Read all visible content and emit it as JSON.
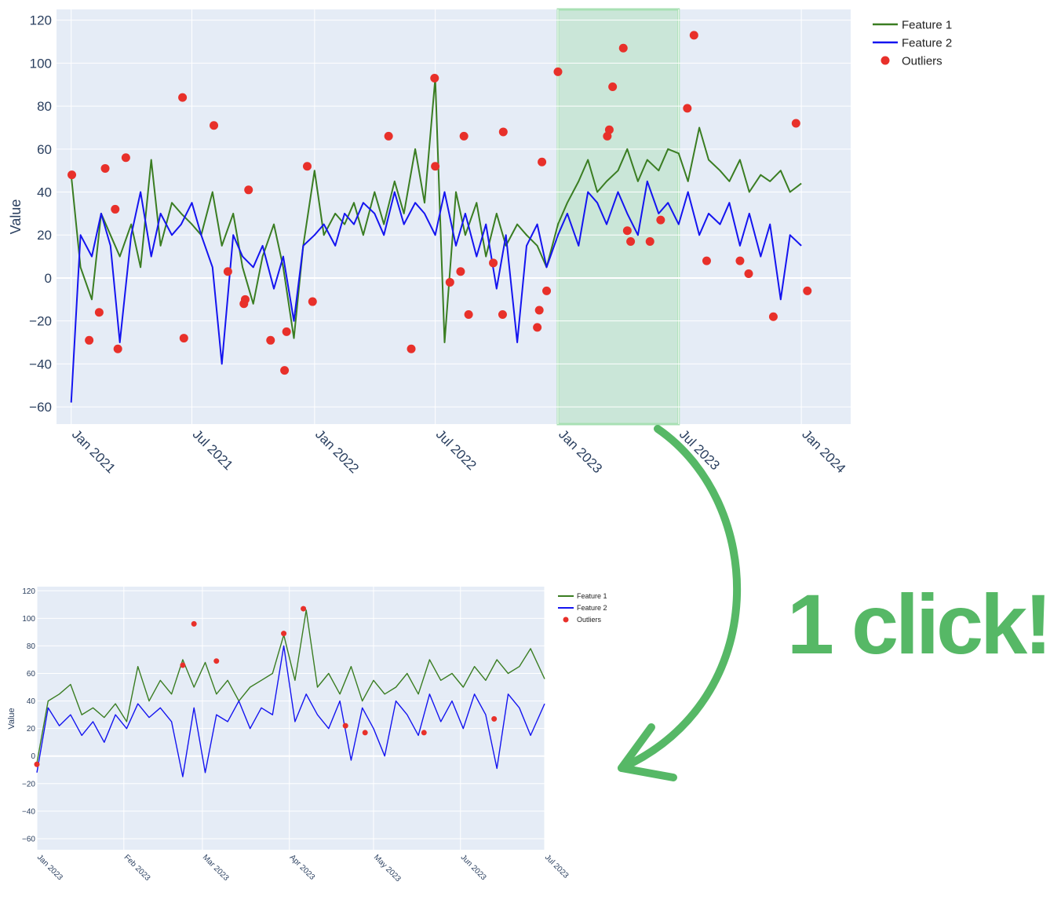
{
  "colors": {
    "plot_bg": "#e5ecf6",
    "grid": "#ffffff",
    "feature1": "#3a7d22",
    "feature2": "#1414f0",
    "outlier": "#e8302a",
    "highlight": "#a8e0b4",
    "callout": "#56b866"
  },
  "callout": {
    "text": "1 click!",
    "arrow_icon": "curved-arrow-icon"
  },
  "chart_data": [
    {
      "type": "line",
      "title": "",
      "xlabel": "",
      "ylabel": "Value",
      "x_axis_type": "date",
      "xlim": [
        "2020-12-10",
        "2024-03-15"
      ],
      "ylim": [
        -68,
        125
      ],
      "y_ticks": [
        -60,
        -40,
        -20,
        0,
        20,
        40,
        60,
        80,
        100,
        120
      ],
      "x_ticks": [
        {
          "date": "2021-01-01",
          "label": "Jan 2021"
        },
        {
          "date": "2021-07-01",
          "label": "Jul 2021"
        },
        {
          "date": "2022-01-01",
          "label": "Jan 2022"
        },
        {
          "date": "2022-07-01",
          "label": "Jul 2022"
        },
        {
          "date": "2023-01-01",
          "label": "Jan 2023"
        },
        {
          "date": "2023-07-01",
          "label": "Jul 2023"
        },
        {
          "date": "2024-01-01",
          "label": "Jan 2024"
        }
      ],
      "grid": true,
      "legend_position": "top-right, outside plot",
      "highlight_range": [
        "2023-01-01",
        "2023-07-01"
      ],
      "series": [
        {
          "name": "Feature 1",
          "style": "line",
          "x": [
            "2021-01-01",
            "2021-01-15",
            "2021-02-01",
            "2021-02-15",
            "2021-03-01",
            "2021-03-15",
            "2021-04-01",
            "2021-04-15",
            "2021-05-01",
            "2021-05-15",
            "2021-06-01",
            "2021-06-15",
            "2021-07-01",
            "2021-07-15",
            "2021-08-01",
            "2021-08-15",
            "2021-09-01",
            "2021-09-15",
            "2021-10-01",
            "2021-10-15",
            "2021-11-01",
            "2021-11-15",
            "2021-12-01",
            "2021-12-15",
            "2022-01-01",
            "2022-01-15",
            "2022-02-01",
            "2022-02-15",
            "2022-03-01",
            "2022-03-15",
            "2022-04-01",
            "2022-04-15",
            "2022-05-01",
            "2022-05-15",
            "2022-06-01",
            "2022-06-15",
            "2022-07-01",
            "2022-07-15",
            "2022-08-01",
            "2022-08-15",
            "2022-09-01",
            "2022-09-15",
            "2022-10-01",
            "2022-10-15",
            "2022-11-01",
            "2022-11-15",
            "2022-12-01",
            "2022-12-15",
            "2023-01-01",
            "2023-01-15",
            "2023-02-01",
            "2023-02-15",
            "2023-03-01",
            "2023-03-15",
            "2023-04-01",
            "2023-04-15",
            "2023-05-01",
            "2023-05-15",
            "2023-06-01",
            "2023-06-15",
            "2023-07-01",
            "2023-07-15",
            "2023-08-01",
            "2023-08-15",
            "2023-09-01",
            "2023-09-15",
            "2023-10-01",
            "2023-10-15",
            "2023-11-01",
            "2023-11-15",
            "2023-12-01",
            "2023-12-15",
            "2024-01-01"
          ],
          "values": [
            48,
            5,
            -10,
            30,
            20,
            10,
            25,
            5,
            55,
            15,
            35,
            30,
            25,
            20,
            40,
            15,
            30,
            5,
            -12,
            10,
            25,
            5,
            -28,
            15,
            50,
            20,
            30,
            25,
            35,
            20,
            40,
            25,
            45,
            30,
            60,
            35,
            93,
            -30,
            40,
            20,
            35,
            10,
            30,
            15,
            25,
            20,
            15,
            5,
            25,
            35,
            45,
            55,
            40,
            45,
            50,
            60,
            45,
            55,
            50,
            60,
            58,
            45,
            70,
            55,
            50,
            45,
            55,
            40,
            48,
            45,
            50,
            40,
            44
          ]
        },
        {
          "name": "Feature 2",
          "style": "line",
          "x": [
            "2021-01-01",
            "2021-01-15",
            "2021-02-01",
            "2021-02-15",
            "2021-03-01",
            "2021-03-15",
            "2021-04-01",
            "2021-04-15",
            "2021-05-01",
            "2021-05-15",
            "2021-06-01",
            "2021-06-15",
            "2021-07-01",
            "2021-07-15",
            "2021-08-01",
            "2021-08-15",
            "2021-09-01",
            "2021-09-15",
            "2021-10-01",
            "2021-10-15",
            "2021-11-01",
            "2021-11-15",
            "2021-12-01",
            "2021-12-15",
            "2022-01-01",
            "2022-01-15",
            "2022-02-01",
            "2022-02-15",
            "2022-03-01",
            "2022-03-15",
            "2022-04-01",
            "2022-04-15",
            "2022-05-01",
            "2022-05-15",
            "2022-06-01",
            "2022-06-15",
            "2022-07-01",
            "2022-07-15",
            "2022-08-01",
            "2022-08-15",
            "2022-09-01",
            "2022-09-15",
            "2022-10-01",
            "2022-10-15",
            "2022-11-01",
            "2022-11-15",
            "2022-12-01",
            "2022-12-15",
            "2023-01-01",
            "2023-01-15",
            "2023-02-01",
            "2023-02-15",
            "2023-03-01",
            "2023-03-15",
            "2023-04-01",
            "2023-04-15",
            "2023-05-01",
            "2023-05-15",
            "2023-06-01",
            "2023-06-15",
            "2023-07-01",
            "2023-07-15",
            "2023-08-01",
            "2023-08-15",
            "2023-09-01",
            "2023-09-15",
            "2023-10-01",
            "2023-10-15",
            "2023-11-01",
            "2023-11-15",
            "2023-12-01",
            "2023-12-15",
            "2024-01-01"
          ],
          "values": [
            -58,
            20,
            10,
            30,
            15,
            -30,
            20,
            40,
            10,
            30,
            20,
            25,
            35,
            20,
            5,
            -40,
            20,
            10,
            5,
            15,
            -5,
            10,
            -20,
            15,
            20,
            25,
            15,
            30,
            25,
            35,
            30,
            20,
            40,
            25,
            35,
            30,
            20,
            40,
            15,
            30,
            10,
            25,
            -5,
            20,
            -30,
            15,
            25,
            5,
            20,
            30,
            15,
            40,
            35,
            25,
            40,
            30,
            20,
            45,
            30,
            35,
            25,
            40,
            20,
            30,
            25,
            35,
            15,
            30,
            10,
            25,
            -10,
            20,
            15
          ]
        },
        {
          "name": "Outliers",
          "style": "markers",
          "x": [
            "2021-01-02",
            "2021-01-28",
            "2021-02-12",
            "2021-02-21",
            "2021-03-08",
            "2021-03-12",
            "2021-03-24",
            "2021-06-17",
            "2021-06-19",
            "2021-08-03",
            "2021-08-24",
            "2021-09-17",
            "2021-09-19",
            "2021-09-24",
            "2021-10-27",
            "2021-11-17",
            "2021-11-20",
            "2021-12-21",
            "2021-12-29",
            "2022-04-22",
            "2022-05-26",
            "2022-06-30",
            "2022-07-01",
            "2022-07-23",
            "2022-08-08",
            "2022-08-13",
            "2022-08-20",
            "2022-09-26",
            "2022-10-10",
            "2022-10-11",
            "2022-12-01",
            "2022-12-04",
            "2022-12-08",
            "2022-12-15",
            "2023-01-01",
            "2023-03-16",
            "2023-03-19",
            "2023-03-24",
            "2023-04-09",
            "2023-04-15",
            "2023-04-20",
            "2023-05-19",
            "2023-06-04",
            "2023-07-14",
            "2023-07-24",
            "2023-08-12",
            "2023-10-01",
            "2023-10-14",
            "2023-11-20",
            "2023-12-24",
            "2024-01-10"
          ],
          "values": [
            48,
            -29,
            -16,
            51,
            32,
            -33,
            56,
            84,
            -28,
            71,
            3,
            -12,
            -10,
            41,
            -29,
            -43,
            -25,
            52,
            -11,
            66,
            -33,
            93,
            52,
            -2,
            3,
            66,
            -17,
            7,
            -17,
            68,
            -23,
            -15,
            54,
            -6,
            96,
            66,
            69,
            89,
            107,
            22,
            17,
            17,
            27,
            79,
            113,
            8,
            8,
            2,
            -18,
            72,
            -6
          ]
        }
      ]
    },
    {
      "type": "line",
      "title": "",
      "xlabel": "",
      "ylabel": "Value",
      "x_axis_type": "date",
      "xlim": [
        "2023-01-01",
        "2023-07-01"
      ],
      "ylim": [
        -68,
        123
      ],
      "y_ticks": [
        -60,
        -40,
        -20,
        0,
        20,
        40,
        60,
        80,
        100,
        120
      ],
      "x_ticks": [
        {
          "date": "2023-01-01",
          "label": "Jan 2023"
        },
        {
          "date": "2023-02-01",
          "label": "Feb 2023"
        },
        {
          "date": "2023-03-01",
          "label": "Mar 2023"
        },
        {
          "date": "2023-04-01",
          "label": "Apr 2023"
        },
        {
          "date": "2023-05-01",
          "label": "May 2023"
        },
        {
          "date": "2023-06-01",
          "label": "Jun 2023"
        },
        {
          "date": "2023-07-01",
          "label": "Jul 2023"
        }
      ],
      "grid": true,
      "legend_position": "top-right, outside plot",
      "series": [
        {
          "name": "Feature 1",
          "style": "line",
          "x": [
            "2023-01-01",
            "2023-01-05",
            "2023-01-09",
            "2023-01-13",
            "2023-01-17",
            "2023-01-21",
            "2023-01-25",
            "2023-01-29",
            "2023-02-02",
            "2023-02-06",
            "2023-02-10",
            "2023-02-14",
            "2023-02-18",
            "2023-02-22",
            "2023-02-26",
            "2023-03-02",
            "2023-03-06",
            "2023-03-10",
            "2023-03-14",
            "2023-03-18",
            "2023-03-22",
            "2023-03-26",
            "2023-03-30",
            "2023-04-03",
            "2023-04-07",
            "2023-04-11",
            "2023-04-15",
            "2023-04-19",
            "2023-04-23",
            "2023-04-27",
            "2023-05-01",
            "2023-05-05",
            "2023-05-09",
            "2023-05-13",
            "2023-05-17",
            "2023-05-21",
            "2023-05-25",
            "2023-05-29",
            "2023-06-02",
            "2023-06-06",
            "2023-06-10",
            "2023-06-14",
            "2023-06-18",
            "2023-06-22",
            "2023-06-26",
            "2023-07-01"
          ],
          "values": [
            -5,
            40,
            45,
            52,
            30,
            35,
            28,
            38,
            25,
            65,
            40,
            55,
            45,
            70,
            50,
            68,
            45,
            55,
            40,
            50,
            55,
            60,
            88,
            55,
            106,
            50,
            60,
            45,
            65,
            40,
            55,
            45,
            50,
            60,
            45,
            70,
            55,
            60,
            50,
            65,
            55,
            70,
            60,
            65,
            78,
            56
          ]
        },
        {
          "name": "Feature 2",
          "style": "line",
          "x": [
            "2023-01-01",
            "2023-01-05",
            "2023-01-09",
            "2023-01-13",
            "2023-01-17",
            "2023-01-21",
            "2023-01-25",
            "2023-01-29",
            "2023-02-02",
            "2023-02-06",
            "2023-02-10",
            "2023-02-14",
            "2023-02-18",
            "2023-02-22",
            "2023-02-26",
            "2023-03-02",
            "2023-03-06",
            "2023-03-10",
            "2023-03-14",
            "2023-03-18",
            "2023-03-22",
            "2023-03-26",
            "2023-03-30",
            "2023-04-03",
            "2023-04-07",
            "2023-04-11",
            "2023-04-15",
            "2023-04-19",
            "2023-04-23",
            "2023-04-27",
            "2023-05-01",
            "2023-05-05",
            "2023-05-09",
            "2023-05-13",
            "2023-05-17",
            "2023-05-21",
            "2023-05-25",
            "2023-05-29",
            "2023-06-02",
            "2023-06-06",
            "2023-06-10",
            "2023-06-14",
            "2023-06-18",
            "2023-06-22",
            "2023-06-26",
            "2023-07-01"
          ],
          "values": [
            -12,
            35,
            22,
            30,
            15,
            25,
            10,
            30,
            20,
            38,
            28,
            35,
            25,
            -15,
            35,
            -12,
            30,
            25,
            40,
            20,
            35,
            30,
            80,
            25,
            45,
            30,
            20,
            40,
            -3,
            35,
            20,
            0,
            40,
            30,
            15,
            45,
            25,
            40,
            20,
            45,
            30,
            -9,
            45,
            35,
            15,
            38
          ]
        },
        {
          "name": "Outliers",
          "style": "markers",
          "x": [
            "2023-01-01",
            "2023-02-22",
            "2023-02-26",
            "2023-03-06",
            "2023-03-30",
            "2023-04-06",
            "2023-04-21",
            "2023-04-28",
            "2023-05-19",
            "2023-06-13"
          ],
          "values": [
            -6,
            66,
            96,
            69,
            89,
            107,
            22,
            17,
            17,
            27
          ]
        }
      ]
    }
  ]
}
